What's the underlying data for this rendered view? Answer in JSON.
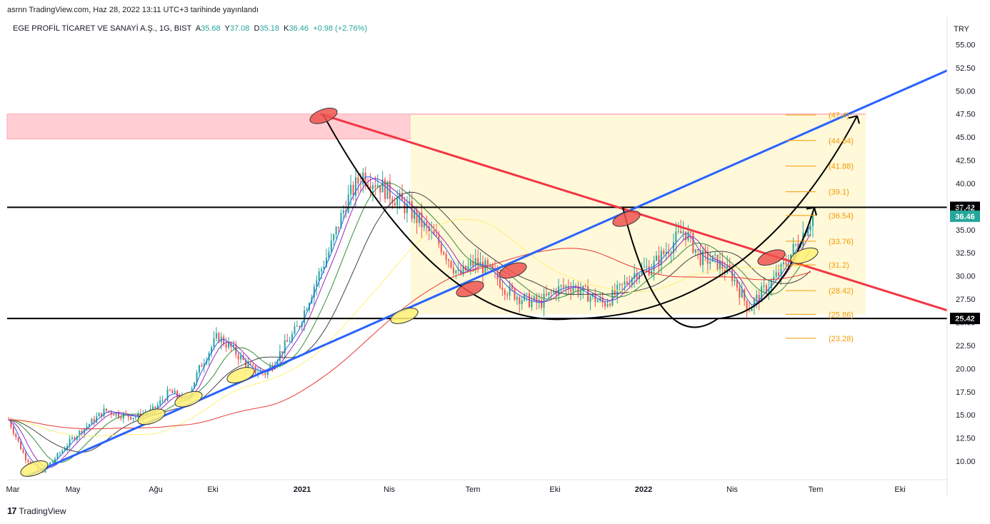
{
  "header": {
    "text": "asrnn TradingView.com, Haz 28, 2022 13:11 UTC+3 tarihinde yayınlandı"
  },
  "symbol": {
    "name": "EGE PROFİL TİCARET VE SANAYİ A.Ş., 1G, BIST",
    "open_label": "A",
    "open": "35.68",
    "high_label": "Y",
    "high": "37.08",
    "low_label": "D",
    "low": "35.18",
    "close_label": "K",
    "close": "36.46",
    "change": "+0.98 (+2.76%)"
  },
  "colors": {
    "up": "#26a69a",
    "down": "#ef5350",
    "trendline_support": "#2962ff",
    "trendline_resistance": "#f23645",
    "resistance_zone": "#ffcdd2",
    "fib_zone": "#fff8d9",
    "fib_text": "#f59b00"
  },
  "footer": {
    "brand": "TradingView",
    "logo": "17"
  },
  "chart_data": {
    "type": "candlestick",
    "currency": "TRY",
    "x_labels": [
      "Mar",
      "May",
      "Ağu",
      "Eki",
      "2021",
      "Nis",
      "Tem",
      "Eki",
      "2022",
      "Nis",
      "Tem",
      "Eki"
    ],
    "y_ticks": [
      "55.00",
      "52.50",
      "50.00",
      "47.50",
      "45.00",
      "42.50",
      "40.00",
      "37.50",
      "35.00",
      "32.50",
      "30.00",
      "27.50",
      "25.00",
      "22.50",
      "20.00",
      "17.50",
      "15.00",
      "12.50",
      "10.00"
    ],
    "ylim": [
      8,
      57.5
    ],
    "horizontal_levels": [
      {
        "value": 37.42,
        "label": "37.42"
      },
      {
        "value": 25.42,
        "label": "25.42"
      }
    ],
    "last_price": {
      "value": 36.46,
      "label": "36.46"
    },
    "resistance_zone": [
      44.8,
      47.5
    ],
    "fib_levels": [
      {
        "value": 47.4,
        "label": "(47.4)"
      },
      {
        "value": 44.64,
        "label": "(44.64)"
      },
      {
        "value": 41.88,
        "label": "(41.88)"
      },
      {
        "value": 39.1,
        "label": "(39.1)"
      },
      {
        "value": 36.54,
        "label": "(36.54)"
      },
      {
        "value": 33.76,
        "label": "(33.76)"
      },
      {
        "value": 31.2,
        "label": "(31.2)"
      },
      {
        "value": 28.42,
        "label": "(28.42)"
      },
      {
        "value": 25.86,
        "label": "(25.86)"
      },
      {
        "value": 23.28,
        "label": "(23.28)"
      }
    ],
    "price_path": [
      [
        0.0,
        14.5
      ],
      [
        0.02,
        10.5
      ],
      [
        0.04,
        8.8
      ],
      [
        0.06,
        10.5
      ],
      [
        0.08,
        12.5
      ],
      [
        0.1,
        14.0
      ],
      [
        0.12,
        15.5
      ],
      [
        0.14,
        15.0
      ],
      [
        0.16,
        14.8
      ],
      [
        0.18,
        15.5
      ],
      [
        0.2,
        17.5
      ],
      [
        0.22,
        16.5
      ],
      [
        0.24,
        20.5
      ],
      [
        0.26,
        23.5
      ],
      [
        0.28,
        22.0
      ],
      [
        0.3,
        20.0
      ],
      [
        0.32,
        19.5
      ],
      [
        0.34,
        22.0
      ],
      [
        0.36,
        24.5
      ],
      [
        0.38,
        29.0
      ],
      [
        0.4,
        33.0
      ],
      [
        0.42,
        38.0
      ],
      [
        0.44,
        41.0
      ],
      [
        0.46,
        40.0
      ],
      [
        0.48,
        38.5
      ],
      [
        0.5,
        37.0
      ],
      [
        0.52,
        35.0
      ],
      [
        0.54,
        33.0
      ],
      [
        0.56,
        30.0
      ],
      [
        0.58,
        31.5
      ],
      [
        0.6,
        30.5
      ],
      [
        0.62,
        28.5
      ],
      [
        0.64,
        27.5
      ],
      [
        0.66,
        27.0
      ],
      [
        0.68,
        28.5
      ],
      [
        0.7,
        29.0
      ],
      [
        0.72,
        28.0
      ],
      [
        0.74,
        27.0
      ],
      [
        0.76,
        28.5
      ],
      [
        0.78,
        30.5
      ],
      [
        0.8,
        31.0
      ],
      [
        0.82,
        33.0
      ],
      [
        0.84,
        35.0
      ],
      [
        0.86,
        32.0
      ],
      [
        0.88,
        31.5
      ],
      [
        0.9,
        30.0
      ],
      [
        0.92,
        26.5
      ],
      [
        0.94,
        28.5
      ],
      [
        0.96,
        30.5
      ],
      [
        0.98,
        33.5
      ],
      [
        1.0,
        36.46
      ]
    ]
  }
}
